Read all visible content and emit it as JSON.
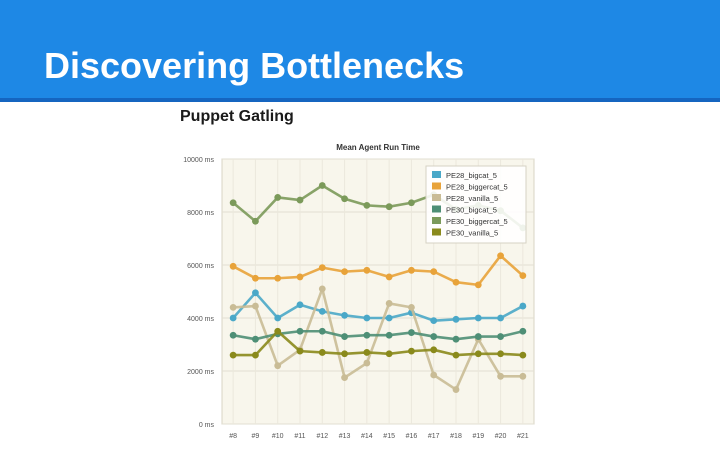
{
  "slide": {
    "title": "Discovering Bottlenecks",
    "figure_heading": "Puppet Gatling"
  },
  "colors": {
    "title_bar": "#1e88e5",
    "plot_background": "#f8f6ec"
  },
  "chart_data": {
    "type": "line",
    "title": "Mean Agent Run Time",
    "xlabel": "",
    "ylabel": "",
    "categories": [
      "#8",
      "#9",
      "#10",
      "#11",
      "#12",
      "#13",
      "#14",
      "#15",
      "#16",
      "#17",
      "#18",
      "#19",
      "#20",
      "#21"
    ],
    "ylim": [
      0,
      10000
    ],
    "y_ticks": [
      0,
      2000,
      4000,
      6000,
      8000,
      10000
    ],
    "y_tick_labels": [
      "0 ms",
      "2000 ms",
      "4000 ms",
      "6000 ms",
      "8000 ms",
      "10000 ms"
    ],
    "grid": true,
    "legend_position": "top-right",
    "series": [
      {
        "name": "PE28_bigcat_5",
        "color": "#4aa8c8",
        "values": [
          4000,
          4950,
          4000,
          4500,
          4250,
          4100,
          4000,
          4000,
          4200,
          3900,
          3950,
          4000,
          4000,
          4450
        ]
      },
      {
        "name": "PE28_biggercat_5",
        "color": "#e8a33a",
        "values": [
          5950,
          5500,
          5500,
          5550,
          5900,
          5750,
          5800,
          5550,
          5800,
          5750,
          5350,
          5250,
          6350,
          5600
        ]
      },
      {
        "name": "PE28_vanilla_5",
        "color": "#c9bc96",
        "values": [
          4400,
          4450,
          2200,
          2800,
          5100,
          1750,
          2300,
          4550,
          4400,
          1850,
          1300,
          3200,
          1800,
          1800
        ]
      },
      {
        "name": "PE30_bigcat_5",
        "color": "#4e8f76",
        "values": [
          3350,
          3200,
          3400,
          3500,
          3500,
          3300,
          3350,
          3350,
          3450,
          3300,
          3200,
          3300,
          3300,
          3500
        ]
      },
      {
        "name": "PE30_biggercat_5",
        "color": "#7b9a5a",
        "values": [
          8350,
          7650,
          8550,
          8450,
          9000,
          8500,
          8250,
          8200,
          8350,
          8650,
          8100,
          8250,
          8050,
          7400
        ]
      },
      {
        "name": "PE30_vanilla_5",
        "color": "#8a8a1c",
        "values": [
          2600,
          2600,
          3500,
          2750,
          2700,
          2650,
          2700,
          2650,
          2750,
          2800,
          2600,
          2650,
          2650,
          2600
        ]
      }
    ]
  }
}
